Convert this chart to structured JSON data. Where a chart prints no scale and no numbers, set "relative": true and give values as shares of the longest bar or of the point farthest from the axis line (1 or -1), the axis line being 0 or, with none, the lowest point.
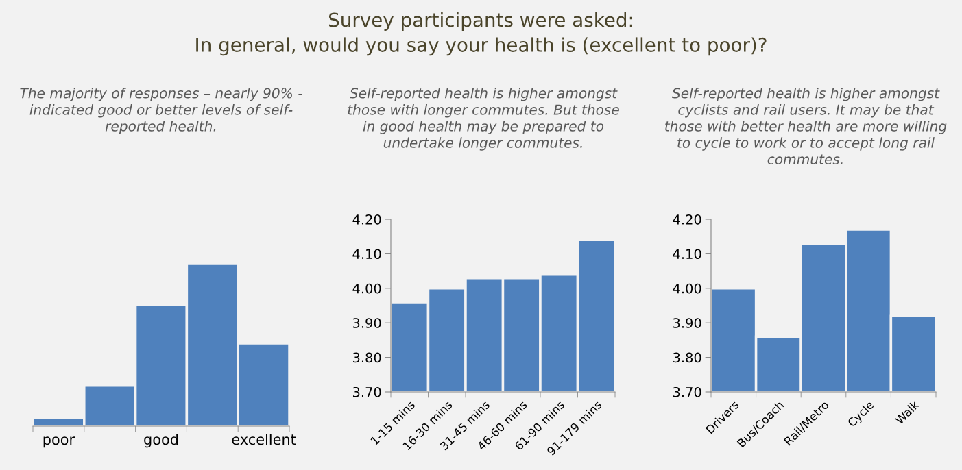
{
  "chart_data": [
    {
      "type": "bar",
      "title": "Survey participants were asked:\nIn general, would you say your health is (excellent to poor)?",
      "subtitle": "The majority of responses – nearly 90% -\nindicated good or better levels of self-\nreported health.",
      "categories": [
        "poor",
        null,
        "good",
        null,
        "excellent"
      ],
      "values": [
        0.05,
        0.25,
        0.75,
        1,
        0.51
      ],
      "color": "#4f81bd",
      "relative": true
    },
    {
      "type": "bar",
      "subtitle": "Self-reported health is higher amongst\nthose with longer commutes. But those\nin good health may be prepared to\nundertake longer commutes.",
      "categories": [
        "1-15 mins",
        "16-30 mins",
        "31-45 mins",
        "46-60 mins",
        "61-90 mins",
        "91-179 mins"
      ],
      "values": [
        3.96,
        4.0,
        4.03,
        4.03,
        4.04,
        4.14
      ],
      "color": "#4f81bd",
      "ylim": [
        3.7,
        4.2
      ],
      "yticks": [
        {
          "value": 3.7,
          "label": "3.70"
        },
        {
          "value": 3.8,
          "label": "3.80"
        },
        {
          "value": 3.9,
          "label": "3.90"
        },
        {
          "value": 4.0,
          "label": "4.00"
        },
        {
          "value": 4.1,
          "label": "4.10"
        },
        {
          "value": 4.2,
          "label": "4.20"
        }
      ]
    },
    {
      "type": "bar",
      "subtitle": "Self-reported health is higher amongst\ncyclists and rail users. It may be that\nthose with better health are more willing\nto cycle to work or to accept long rail\ncommutes.",
      "categories": [
        "Drivers",
        "Bus/Coach",
        "Rail/Metro",
        "Cycle",
        "Walk"
      ],
      "values": [
        4.0,
        3.86,
        4.13,
        4.17,
        3.92
      ],
      "color": "#4f81bd",
      "ylim": [
        3.7,
        4.2
      ],
      "yticks": [
        {
          "value": 3.7,
          "label": "3.70"
        },
        {
          "value": 3.8,
          "label": "3.80"
        },
        {
          "value": 3.9,
          "label": "3.90"
        },
        {
          "value": 4.0,
          "label": "4.00"
        },
        {
          "value": 4.1,
          "label": "4.10"
        },
        {
          "value": 4.2,
          "label": "4.20"
        }
      ]
    }
  ]
}
